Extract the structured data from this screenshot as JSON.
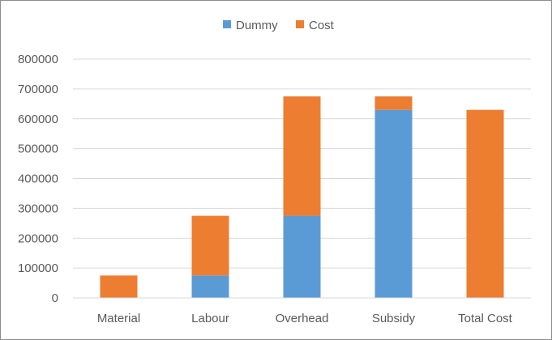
{
  "chart_data": {
    "type": "bar",
    "stacked": true,
    "categories": [
      "Material",
      "Labour",
      "Overhead",
      "Subsidy",
      "Total Cost"
    ],
    "series": [
      {
        "name": "Dummy",
        "color": "#5b9bd5",
        "values": [
          0,
          75000,
          275000,
          630000,
          0
        ]
      },
      {
        "name": "Cost",
        "color": "#ed7d31",
        "values": [
          75000,
          200000,
          400000,
          45000,
          630000
        ]
      }
    ],
    "ylim": [
      0,
      800000
    ],
    "yticks": [
      "0",
      "100000",
      "200000",
      "300000",
      "400000",
      "500000",
      "600000",
      "700000",
      "800000"
    ],
    "grid": true,
    "legend": "top"
  }
}
